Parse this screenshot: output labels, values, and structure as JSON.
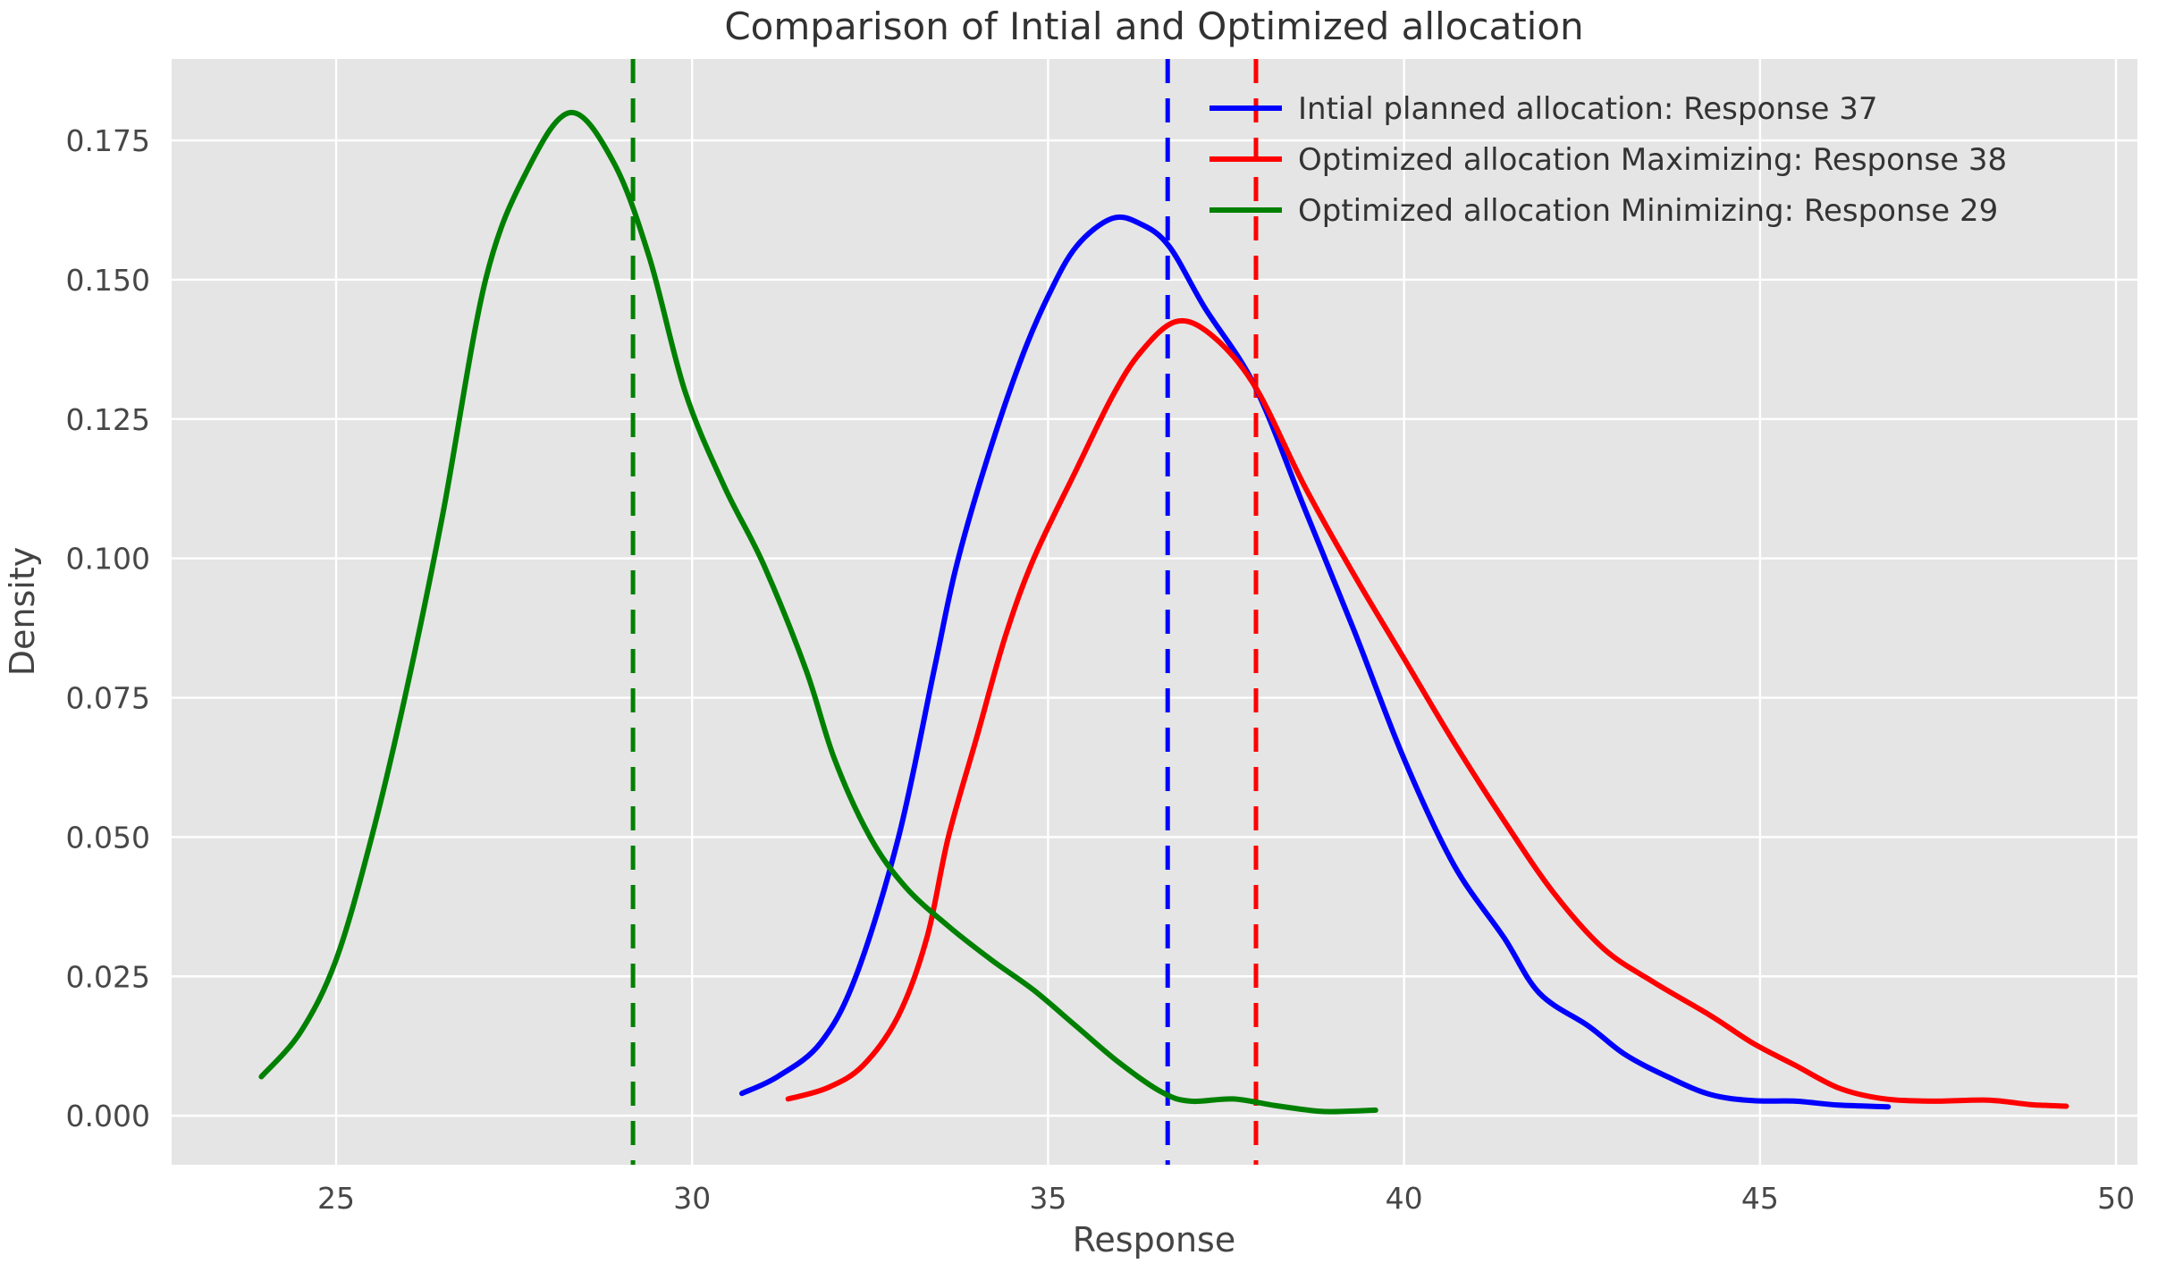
{
  "title": "Comparison of Intial and Optimized allocation",
  "axes": {
    "xlabel": "Response",
    "ylabel": "Density",
    "x_ticks": [
      25,
      30,
      35,
      40,
      45,
      50
    ],
    "y_tick_labels": [
      "0.000",
      "0.025",
      "0.050",
      "0.075",
      "0.100",
      "0.125",
      "0.150",
      "0.175"
    ],
    "y_tick_values": [
      0,
      0.025,
      0.05,
      0.075,
      0.1,
      0.125,
      0.15,
      0.175
    ]
  },
  "colors": {
    "figure_background": "#ffffff",
    "plot_background": "#e5e5e5",
    "grid": "#ffffff",
    "blue_series": "#0000ff",
    "red_series": "#ff0000",
    "green_series": "#008000"
  },
  "legend": {
    "position": "upper right",
    "entries": [
      {
        "label": "Intial planned allocation: Response 37",
        "color": "#0000ff"
      },
      {
        "label": "Optimized allocation Maximizing: Response 38",
        "color": "#ff0000"
      },
      {
        "label": "Optimized allocation Minimizing: Response 29",
        "color": "#008000"
      }
    ]
  },
  "chart_data": {
    "type": "line",
    "subtype": "kde-density",
    "title": "Comparison of Intial and Optimized allocation",
    "xlabel": "Response",
    "ylabel": "Density",
    "xlim": [
      22.69,
      50.3
    ],
    "ylim": [
      -0.0088,
      0.1896
    ],
    "grid": true,
    "legend_position": "upper right",
    "series": [
      {
        "name": "Intial planned allocation: Response 37",
        "color": "#0000ff",
        "peak": {
          "x": 36.0,
          "density": 0.161
        },
        "points": [
          [
            30.7,
            0.004
          ],
          [
            31.2,
            0.007
          ],
          [
            31.8,
            0.013
          ],
          [
            32.3,
            0.025
          ],
          [
            32.9,
            0.05
          ],
          [
            33.4,
            0.08
          ],
          [
            33.7,
            0.098
          ],
          [
            34.1,
            0.116
          ],
          [
            34.6,
            0.135
          ],
          [
            35.0,
            0.147
          ],
          [
            35.4,
            0.156
          ],
          [
            35.9,
            0.161
          ],
          [
            36.3,
            0.16
          ],
          [
            36.7,
            0.156
          ],
          [
            37.2,
            0.145
          ],
          [
            37.9,
            0.131
          ],
          [
            38.6,
            0.109
          ],
          [
            39.3,
            0.087
          ],
          [
            40.0,
            0.064
          ],
          [
            40.7,
            0.045
          ],
          [
            41.4,
            0.032
          ],
          [
            41.9,
            0.022
          ],
          [
            42.6,
            0.016
          ],
          [
            43.1,
            0.011
          ],
          [
            43.7,
            0.007
          ],
          [
            44.3,
            0.0038
          ],
          [
            44.9,
            0.0027
          ],
          [
            45.5,
            0.0026
          ],
          [
            46.1,
            0.0019
          ],
          [
            46.8,
            0.0016
          ]
        ]
      },
      {
        "name": "Optimized allocation Maximizing: Response 38",
        "color": "#ff0000",
        "peak": {
          "x": 36.8,
          "density": 0.1425
        },
        "points": [
          [
            31.35,
            0.003
          ],
          [
            31.9,
            0.005
          ],
          [
            32.4,
            0.009
          ],
          [
            32.9,
            0.018
          ],
          [
            33.3,
            0.032
          ],
          [
            33.6,
            0.05
          ],
          [
            34.0,
            0.068
          ],
          [
            34.4,
            0.086
          ],
          [
            34.8,
            0.1
          ],
          [
            35.4,
            0.116
          ],
          [
            35.9,
            0.129
          ],
          [
            36.3,
            0.137
          ],
          [
            36.8,
            0.1425
          ],
          [
            37.3,
            0.14
          ],
          [
            37.9,
            0.131
          ],
          [
            38.6,
            0.113
          ],
          [
            39.3,
            0.097
          ],
          [
            40.0,
            0.082
          ],
          [
            40.7,
            0.067
          ],
          [
            41.4,
            0.053
          ],
          [
            42.1,
            0.04
          ],
          [
            42.8,
            0.03
          ],
          [
            43.5,
            0.024
          ],
          [
            44.3,
            0.018
          ],
          [
            44.9,
            0.013
          ],
          [
            45.5,
            0.009
          ],
          [
            46.1,
            0.005
          ],
          [
            46.7,
            0.0031
          ],
          [
            47.4,
            0.0026
          ],
          [
            48.2,
            0.0028
          ],
          [
            48.8,
            0.002
          ],
          [
            49.3,
            0.0017
          ]
        ]
      },
      {
        "name": "Optimized allocation Minimizing: Response 29",
        "color": "#008000",
        "peak": {
          "x": 28.3,
          "density": 0.18
        },
        "points": [
          [
            23.95,
            0.007
          ],
          [
            24.5,
            0.015
          ],
          [
            25.0,
            0.028
          ],
          [
            25.5,
            0.05
          ],
          [
            26.0,
            0.077
          ],
          [
            26.5,
            0.108
          ],
          [
            27.1,
            0.15
          ],
          [
            27.7,
            0.17
          ],
          [
            28.3,
            0.18
          ],
          [
            28.9,
            0.171
          ],
          [
            29.4,
            0.154
          ],
          [
            29.9,
            0.13
          ],
          [
            30.45,
            0.113
          ],
          [
            31.0,
            0.099
          ],
          [
            31.6,
            0.08
          ],
          [
            32.0,
            0.064
          ],
          [
            32.5,
            0.05
          ],
          [
            33.0,
            0.041
          ],
          [
            33.6,
            0.034
          ],
          [
            34.2,
            0.028
          ],
          [
            34.8,
            0.0225
          ],
          [
            35.4,
            0.016
          ],
          [
            36.0,
            0.0095
          ],
          [
            36.6,
            0.0042
          ],
          [
            37.0,
            0.0026
          ],
          [
            37.6,
            0.003
          ],
          [
            38.2,
            0.0018
          ],
          [
            38.8,
            0.0008
          ],
          [
            39.2,
            0.0008
          ],
          [
            39.6,
            0.001
          ]
        ]
      }
    ],
    "vlines": [
      {
        "x": 36.68,
        "color": "#0000ff",
        "style": "dashed",
        "meaning": "mean of initial allocation"
      },
      {
        "x": 37.92,
        "color": "#ff0000",
        "style": "dashed",
        "meaning": "mean of maximizing allocation"
      },
      {
        "x": 29.17,
        "color": "#008000",
        "style": "dashed",
        "meaning": "mean of minimizing allocation"
      }
    ]
  }
}
